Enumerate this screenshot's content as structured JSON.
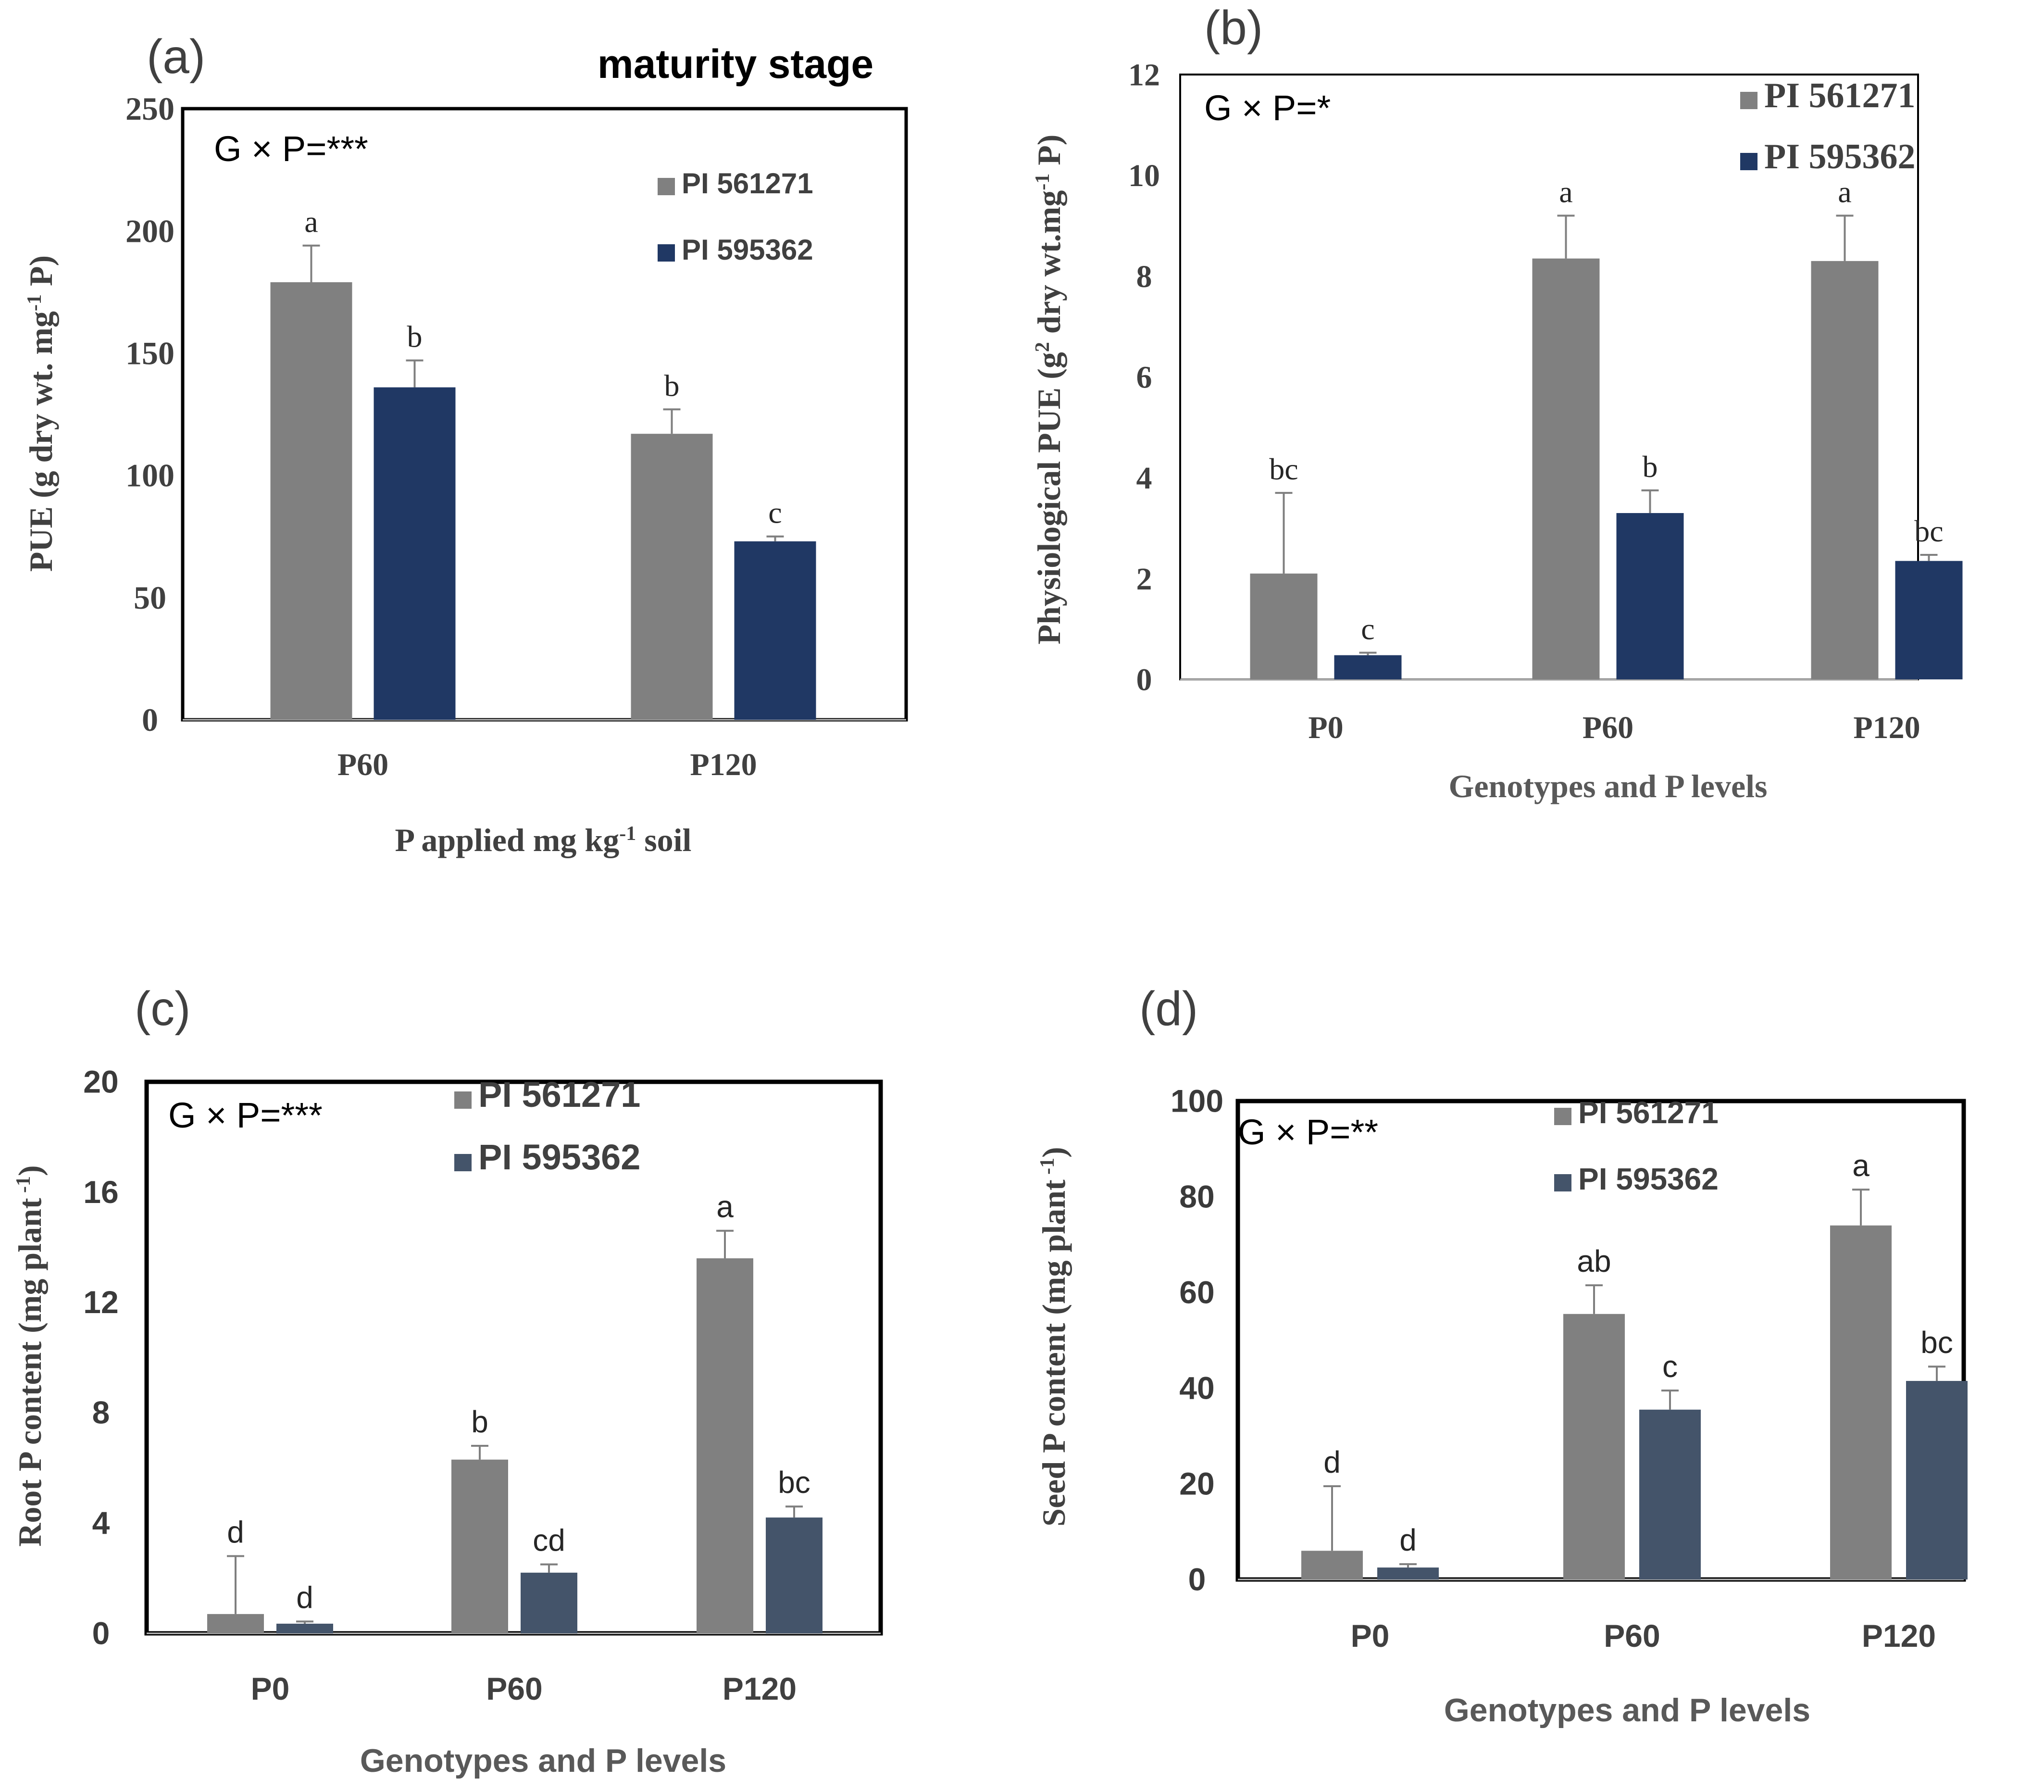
{
  "colors": {
    "series1": "#808080",
    "series2_top": "#203864",
    "series2_bottom": "#44546A",
    "axis": "#000000",
    "text_gray": "#595959"
  },
  "chart_data": [
    {
      "id": "a",
      "type": "bar",
      "panel_label": "(a)",
      "title": "maturity stage",
      "annotation": "G × P=***",
      "categories": [
        "P60",
        "P120"
      ],
      "series": [
        {
          "name": "PI 561271",
          "values": [
            179,
            117
          ],
          "errors": [
            15,
            10
          ],
          "letters": [
            "a",
            "b"
          ]
        },
        {
          "name": "PI 595362",
          "values": [
            136,
            73
          ],
          "errors": [
            11,
            2
          ],
          "letters": [
            "b",
            "c"
          ]
        }
      ],
      "ylabel_main": "PUE (g dry wt. mg",
      "ylabel_sup": "-1",
      "ylabel_tail": " P)",
      "xlabel_main": "P applied mg kg",
      "xlabel_sup": "-1",
      "xlabel_tail": " soil",
      "yticks": [
        "0",
        "50",
        "100",
        "150",
        "200",
        "250"
      ],
      "ylim": [
        0,
        250
      ]
    },
    {
      "id": "b",
      "type": "bar",
      "panel_label": "(b)",
      "annotation": "G × P=*",
      "categories": [
        "P0",
        "P60",
        "P120"
      ],
      "series": [
        {
          "name": "PI 561271",
          "values": [
            2.1,
            8.35,
            8.3
          ],
          "errors": [
            1.6,
            0.85,
            0.9
          ],
          "letters": [
            "bc",
            "a",
            "a"
          ]
        },
        {
          "name": "PI 595362",
          "values": [
            0.48,
            3.3,
            2.35
          ],
          "errors": [
            0.05,
            0.45,
            0.12
          ],
          "letters": [
            "c",
            "b",
            "bc"
          ]
        }
      ],
      "ylabel_main": "Physiological PUE (g",
      "ylabel_sup": "2",
      "ylabel_mid": " dry wt.mg",
      "ylabel_sup2": "-1",
      "ylabel_tail": " P)",
      "xlabel": "Genotypes and P levels",
      "yticks": [
        "0",
        "2",
        "4",
        "6",
        "8",
        "10",
        "12"
      ],
      "ylim": [
        0,
        12
      ]
    },
    {
      "id": "c",
      "type": "bar",
      "panel_label": "(c)",
      "annotation": "G × P=***",
      "categories": [
        "P0",
        "P60",
        "P120"
      ],
      "series": [
        {
          "name": "PI 561271",
          "values": [
            0.7,
            6.3,
            13.6
          ],
          "errors": [
            2.1,
            0.5,
            1.0
          ],
          "letters": [
            "d",
            "b",
            "a"
          ]
        },
        {
          "name": "PI 595362",
          "values": [
            0.35,
            2.2,
            4.2
          ],
          "errors": [
            0.08,
            0.3,
            0.4
          ],
          "letters": [
            "d",
            "cd",
            "bc"
          ]
        }
      ],
      "ylabel_main": "Root P content (mg plant",
      "ylabel_sup": " -1",
      "ylabel_tail": ")",
      "xlabel": "Genotypes and P levels",
      "yticks": [
        "0",
        "4",
        "8",
        "12",
        "16",
        "20"
      ],
      "ylim": [
        0,
        20
      ]
    },
    {
      "id": "d",
      "type": "bar",
      "panel_label": "(d)",
      "annotation": "G × P=**",
      "categories": [
        "P0",
        "P60",
        "P120"
      ],
      "series": [
        {
          "name": "PI 561271",
          "values": [
            6,
            55.5,
            74
          ],
          "errors": [
            13.5,
            6,
            7.5
          ],
          "letters": [
            "d",
            "ab",
            "a"
          ]
        },
        {
          "name": "PI 595362",
          "values": [
            2.5,
            35.5,
            41.5
          ],
          "errors": [
            0.7,
            4,
            3
          ],
          "letters": [
            "d",
            "c",
            "bc"
          ]
        }
      ],
      "ylabel_main": "Seed P content (mg plant",
      "ylabel_sup": " -1",
      "ylabel_tail": ")",
      "xlabel": "Genotypes and P levels",
      "yticks": [
        "0",
        "20",
        "40",
        "60",
        "80",
        "100"
      ],
      "ylim": [
        0,
        100
      ]
    }
  ]
}
